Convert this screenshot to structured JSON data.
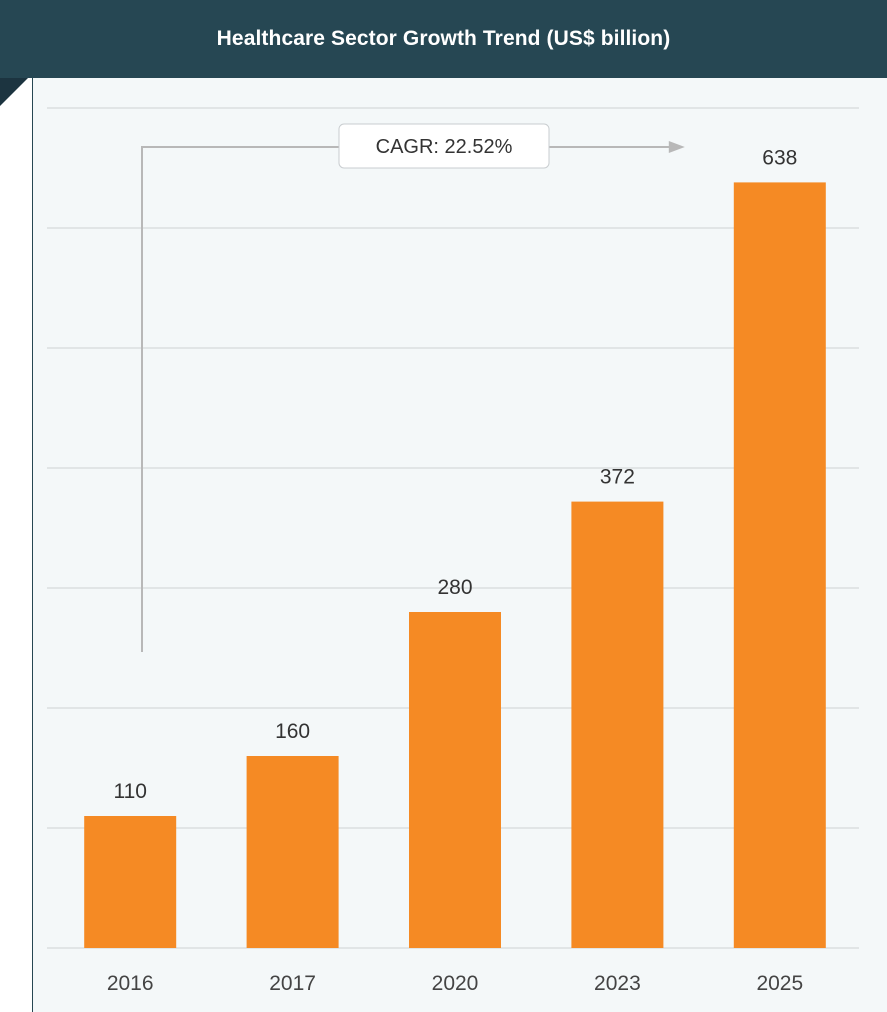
{
  "header": {
    "title": "Healthcare Sector Growth Trend (US$ billion)"
  },
  "annotation": {
    "label": "CAGR: 22.52%"
  },
  "colors": {
    "header_bg": "#264753",
    "bar": "#f58a24",
    "panel_bg": "#f4f8f9",
    "grid": "#d5d9db",
    "arrow": "#b8b8b8"
  },
  "chart_data": {
    "type": "bar",
    "title": "Healthcare Sector Growth Trend (US$ billion)",
    "categories": [
      "2016",
      "2017",
      "2020",
      "2023",
      "2025"
    ],
    "values": [
      110,
      160,
      280,
      372,
      638
    ],
    "data_labels": [
      "110",
      "160",
      "280",
      "372",
      "638"
    ],
    "xlabel": "",
    "ylabel": "",
    "ylim": [
      0,
      700
    ],
    "grid": true,
    "legend": "none",
    "annotations": [
      "CAGR: 22.52%"
    ]
  }
}
